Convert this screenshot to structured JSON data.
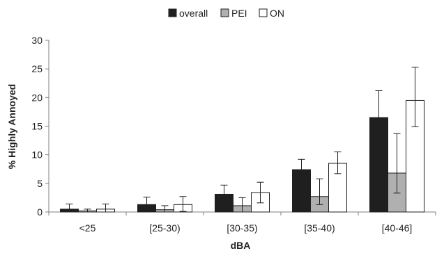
{
  "chart_data": {
    "type": "bar",
    "title": "",
    "xlabel": "dBA",
    "ylabel": "% Highly Annoyed",
    "ylim": [
      0,
      30
    ],
    "yticks": [
      0,
      5,
      10,
      15,
      20,
      25,
      30
    ],
    "categories": [
      "<25",
      "[25-30)",
      "[30-35)",
      "[35-40)",
      "[40-46]"
    ],
    "legend_position": "top-center",
    "grid": false,
    "series": [
      {
        "name": "overall",
        "color": "#1f1f1f",
        "values": [
          0.5,
          1.3,
          3.1,
          7.4,
          16.5
        ],
        "error_low": [
          0.0,
          0.0,
          1.6,
          5.8,
          11.8
        ],
        "error_high": [
          1.4,
          2.6,
          4.7,
          9.2,
          21.2
        ]
      },
      {
        "name": "PEI",
        "color": "#b0b0b0",
        "values": [
          0.2,
          0.4,
          1.1,
          2.7,
          6.8
        ],
        "error_low": [
          0.0,
          0.0,
          0.0,
          1.3,
          3.3
        ],
        "error_high": [
          0.5,
          1.1,
          2.5,
          5.8,
          13.7
        ]
      },
      {
        "name": "ON",
        "color": "#ffffff",
        "values": [
          0.5,
          1.3,
          3.4,
          8.5,
          19.5
        ],
        "error_low": [
          0.0,
          0.1,
          1.6,
          6.7,
          14.9
        ],
        "error_high": [
          1.4,
          2.7,
          5.2,
          10.5,
          25.3
        ]
      }
    ]
  }
}
